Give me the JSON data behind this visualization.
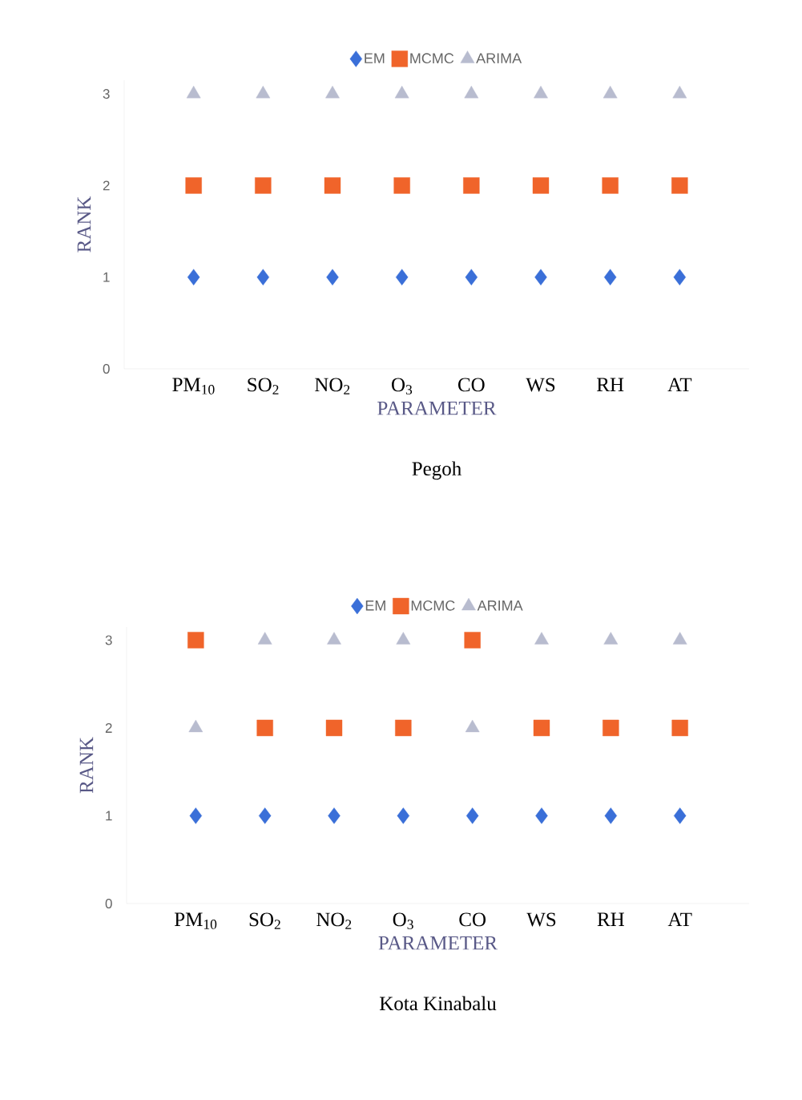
{
  "chart_data": [
    {
      "type": "scatter",
      "title": "Pegoh",
      "xlabel": "PARAMETER",
      "ylabel": "RANK",
      "categories": [
        "PM$_{10}$",
        "SO$_{2}$",
        "NO$_{2}$",
        "O$_{3}$",
        "CO",
        "WS",
        "RH",
        "AT"
      ],
      "series": [
        {
          "name": "EM",
          "color": "#3a6fd8",
          "marker": "diamond",
          "values": [
            1,
            1,
            1,
            1,
            1,
            1,
            1,
            1
          ]
        },
        {
          "name": "MCMC",
          "color": "#f0642a",
          "marker": "square",
          "values": [
            2,
            2,
            2,
            2,
            2,
            2,
            2,
            2
          ]
        },
        {
          "name": "ARIMA",
          "color": "#b8bccf",
          "marker": "triangle",
          "values": [
            3,
            3,
            3,
            3,
            3,
            3,
            3,
            3
          ]
        }
      ],
      "ylim": [
        0,
        3.15
      ],
      "yticks": [
        0,
        1,
        2,
        3
      ],
      "legend": "top"
    },
    {
      "type": "scatter",
      "title": "Kota Kinabalu",
      "xlabel": "PARAMETER",
      "ylabel": "RANK",
      "categories": [
        "PM$_{10}$",
        "SO$_{2}$",
        "NO$_{2}$",
        "O$_{3}$",
        "CO",
        "WS",
        "RH",
        "AT"
      ],
      "series": [
        {
          "name": "EM",
          "color": "#3a6fd8",
          "marker": "diamond",
          "values": [
            1,
            1,
            1,
            1,
            1,
            1,
            1,
            1
          ]
        },
        {
          "name": "MCMC",
          "color": "#f0642a",
          "marker": "square",
          "values": [
            3,
            2,
            2,
            2,
            3,
            2,
            2,
            2
          ]
        },
        {
          "name": "ARIMA",
          "color": "#b8bccf",
          "marker": "triangle",
          "values": [
            2,
            3,
            3,
            3,
            2,
            3,
            3,
            3
          ]
        }
      ],
      "ylim": [
        0,
        3.15
      ],
      "yticks": [
        0,
        1,
        2,
        3
      ],
      "legend": "top"
    }
  ]
}
